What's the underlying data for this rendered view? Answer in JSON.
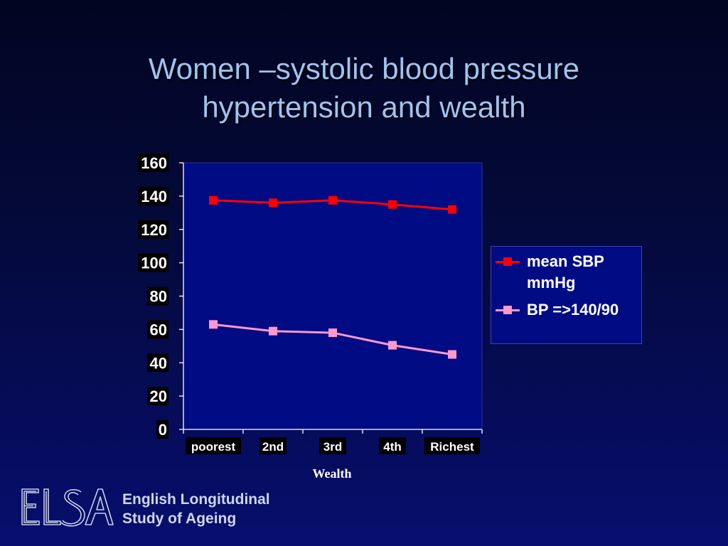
{
  "title": {
    "line1": "Women –systolic blood pressure",
    "line2": "hypertension and wealth"
  },
  "chart_data": {
    "type": "line",
    "categories": [
      "poorest",
      "2nd",
      "3rd",
      "4th",
      "Richest"
    ],
    "series": [
      {
        "name": "mean SBP mmHg",
        "color": "#ff0000",
        "values": [
          137.5,
          136,
          137.5,
          135,
          132
        ]
      },
      {
        "name": "BP =>140/90",
        "color": "#ff99cc",
        "values": [
          63,
          59,
          58,
          50.5,
          45
        ]
      }
    ],
    "xlabel": "Wealth",
    "ylabel": "",
    "ylim": [
      0,
      160
    ],
    "yticks": [
      "0",
      "20",
      "40",
      "60",
      "80",
      "100",
      "120",
      "140",
      "160"
    ],
    "grid": false,
    "legend_position": "right",
    "legend": {
      "item1_line1": "mean SBP",
      "item1_line2": "mmHg",
      "item2": "BP =>140/90"
    }
  },
  "footer": {
    "logo_letters": "ELSA",
    "org_line1": "English Longitudinal",
    "org_line2": "Study of Ageing"
  }
}
